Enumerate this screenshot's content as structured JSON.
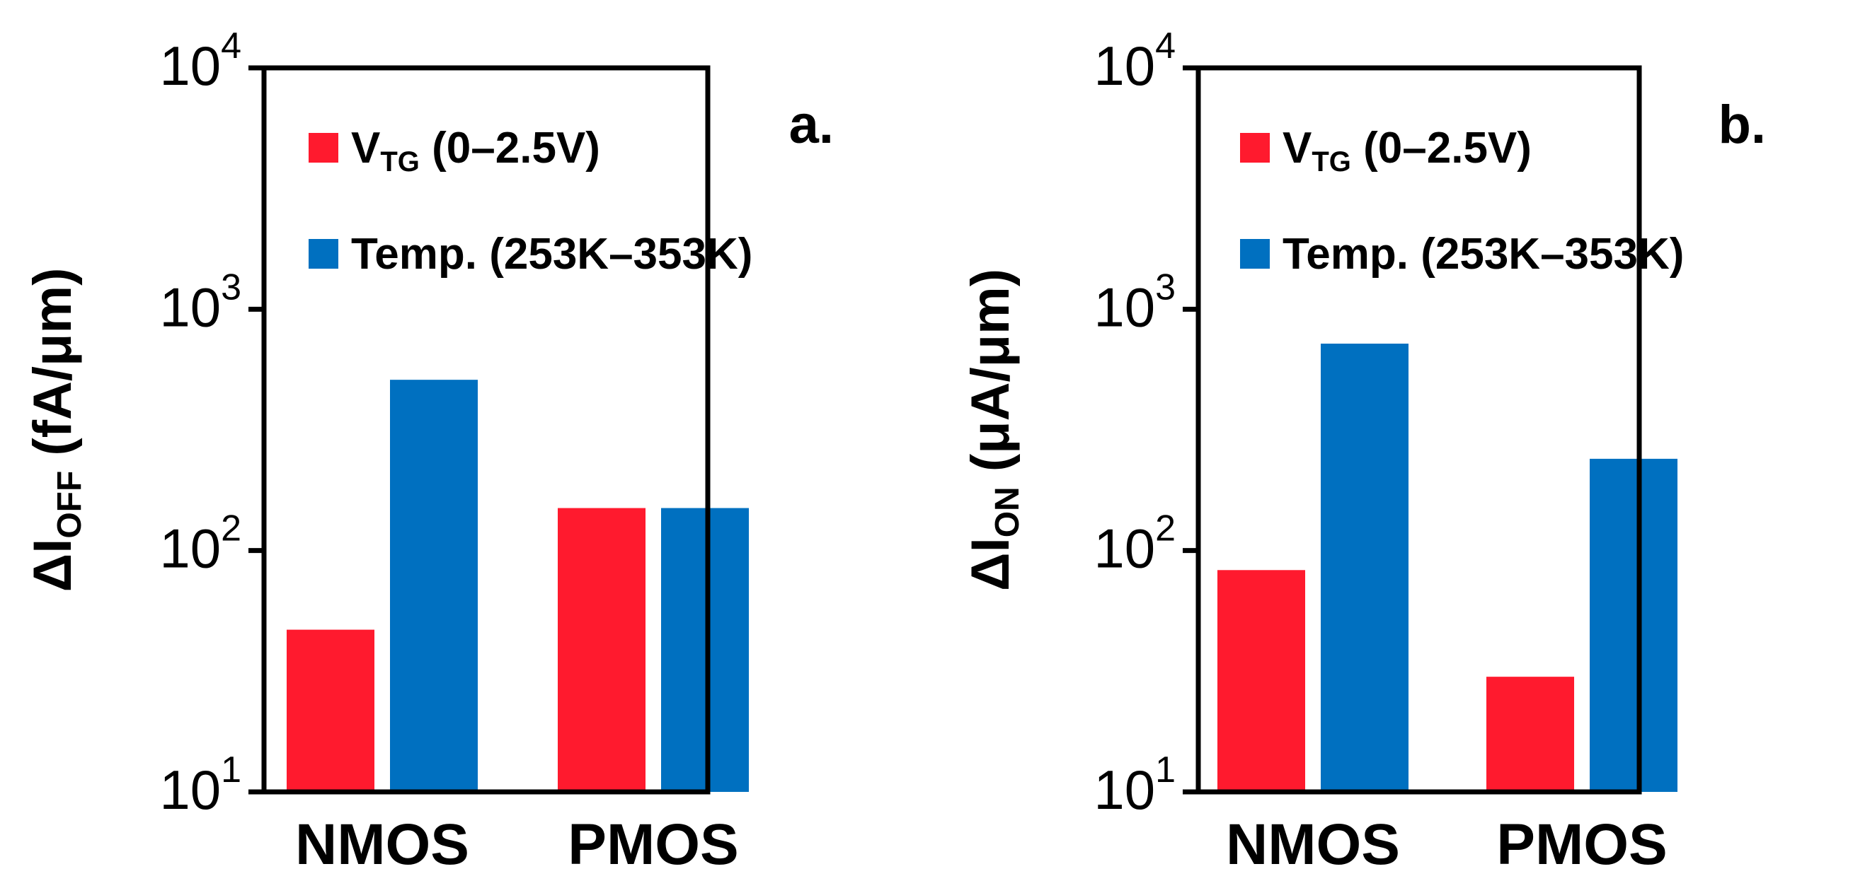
{
  "colors": {
    "vtg": "#ff1a2e",
    "temp": "#0070c0",
    "axis": "#000000"
  },
  "chart_data": [
    {
      "type": "bar",
      "panel_label": "a.",
      "scale": "log",
      "ylim": [
        10,
        10000
      ],
      "yticks": [
        {
          "base": "10",
          "exp": "1"
        },
        {
          "base": "10",
          "exp": "2"
        },
        {
          "base": "10",
          "exp": "3"
        },
        {
          "base": "10",
          "exp": "4"
        }
      ],
      "ylabel": {
        "main": "ΔI",
        "sub": "OFF",
        "unit": " (fA/μm)"
      },
      "categories": [
        "NMOS",
        "PMOS"
      ],
      "series": [
        {
          "name": {
            "main": "V",
            "sub": "TG",
            "rest": " (0–2.5V)"
          },
          "color_key": "vtg",
          "values": [
            47,
            150
          ]
        },
        {
          "name": {
            "main": "Temp. (253K–353K)"
          },
          "color_key": "temp",
          "values": [
            510,
            150
          ]
        }
      ],
      "legend": "top-left",
      "grid": false
    },
    {
      "type": "bar",
      "panel_label": "b.",
      "scale": "log",
      "ylim": [
        10,
        10000
      ],
      "yticks": [
        {
          "base": "10",
          "exp": "1"
        },
        {
          "base": "10",
          "exp": "2"
        },
        {
          "base": "10",
          "exp": "3"
        },
        {
          "base": "10",
          "exp": "4"
        }
      ],
      "ylabel": {
        "main": "ΔI",
        "sub": "ON",
        "unit": " (μA/μm)"
      },
      "categories": [
        "NMOS",
        "PMOS"
      ],
      "series": [
        {
          "name": {
            "main": "V",
            "sub": "TG",
            "rest": " (0–2.5V)"
          },
          "color_key": "vtg",
          "values": [
            83,
            30
          ]
        },
        {
          "name": {
            "main": "Temp. (253K–353K)"
          },
          "color_key": "temp",
          "values": [
            720,
            240
          ]
        }
      ],
      "legend": "top-left",
      "grid": false
    }
  ]
}
